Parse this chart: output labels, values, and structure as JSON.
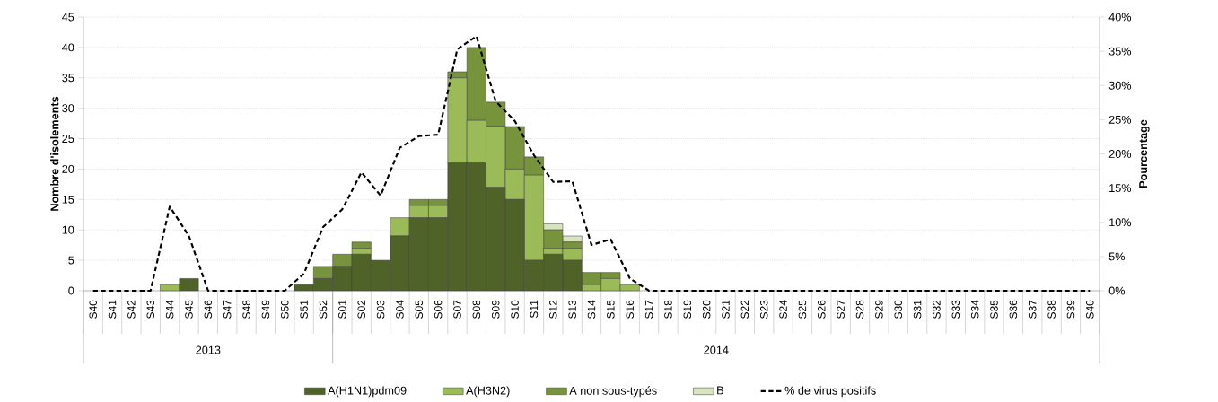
{
  "chart_data": {
    "type": "bar",
    "stacked": true,
    "categories": [
      "S40",
      "S41",
      "S42",
      "S43",
      "S44",
      "S45",
      "S46",
      "S47",
      "S48",
      "S49",
      "S50",
      "S51",
      "S52",
      "S01",
      "S02",
      "S03",
      "S04",
      "S05",
      "S06",
      "S07",
      "S08",
      "S09",
      "S10",
      "S11",
      "S12",
      "S13",
      "S14",
      "S15",
      "S16",
      "S17",
      "S18",
      "S19",
      "S20",
      "S21",
      "S22",
      "S23",
      "S24",
      "S25",
      "S26",
      "S27",
      "S28",
      "S29",
      "S30",
      "S31",
      "S32",
      "S33",
      "S34",
      "S35",
      "S36",
      "S37",
      "S38",
      "S39",
      "S40"
    ],
    "series": [
      {
        "name": "A(H1N1)pdm09",
        "color": "#4f6228",
        "values": [
          0,
          0,
          0,
          0,
          0,
          2,
          0,
          0,
          0,
          0,
          0,
          1,
          2,
          4,
          6,
          5,
          9,
          12,
          12,
          21,
          21,
          17,
          15,
          5,
          6,
          5,
          0,
          0,
          0,
          0,
          0,
          0,
          0,
          0,
          0,
          0,
          0,
          0,
          0,
          0,
          0,
          0,
          0,
          0,
          0,
          0,
          0,
          0,
          0,
          0,
          0,
          0,
          0
        ]
      },
      {
        "name": "A(H3N2)",
        "color": "#9bbb59",
        "values": [
          0,
          0,
          0,
          0,
          1,
          0,
          0,
          0,
          0,
          0,
          0,
          0,
          0,
          0,
          1,
          0,
          3,
          2,
          2,
          14,
          7,
          10,
          5,
          14,
          1,
          2,
          1,
          2,
          1,
          0,
          0,
          0,
          0,
          0,
          0,
          0,
          0,
          0,
          0,
          0,
          0,
          0,
          0,
          0,
          0,
          0,
          0,
          0,
          0,
          0,
          0,
          0,
          0
        ]
      },
      {
        "name": "A non sous-typés",
        "color": "#77933c",
        "values": [
          0,
          0,
          0,
          0,
          0,
          0,
          0,
          0,
          0,
          0,
          0,
          0,
          2,
          2,
          1,
          0,
          0,
          1,
          1,
          1,
          12,
          4,
          7,
          3,
          3,
          1,
          2,
          1,
          0,
          0,
          0,
          0,
          0,
          0,
          0,
          0,
          0,
          0,
          0,
          0,
          0,
          0,
          0,
          0,
          0,
          0,
          0,
          0,
          0,
          0,
          0,
          0,
          0
        ]
      },
      {
        "name": "B",
        "color": "#d7e4bd",
        "values": [
          0,
          0,
          0,
          0,
          0,
          0,
          0,
          0,
          0,
          0,
          0,
          0,
          0,
          0,
          0,
          0,
          0,
          0,
          0,
          0,
          0,
          0,
          0,
          0,
          1,
          1,
          0,
          0,
          0,
          0,
          0,
          0,
          0,
          0,
          0,
          0,
          0,
          0,
          0,
          0,
          0,
          0,
          0,
          0,
          0,
          0,
          0,
          0,
          0,
          0,
          0,
          0,
          0
        ]
      },
      {
        "name": "% de virus positifs",
        "type": "line",
        "axis": "y2",
        "color": "#000000",
        "line_style": "dashed",
        "marker": "none",
        "values": [
          0,
          0,
          0,
          0,
          12.3,
          8.0,
          0,
          0,
          0,
          0,
          0,
          2.5,
          9.3,
          11.9,
          17.3,
          13.9,
          20.9,
          22.6,
          22.8,
          35.3,
          37.2,
          27.7,
          24.8,
          19.8,
          15.9,
          16.0,
          6.7,
          7.5,
          1.8,
          0,
          0,
          0,
          0,
          0,
          0,
          0,
          0,
          0,
          0,
          0,
          0,
          0,
          0,
          0,
          0,
          0,
          0,
          0,
          0,
          0,
          0,
          0,
          0
        ]
      }
    ],
    "ylabel": "Nombre d'isolements",
    "y2label": "Pourcentage",
    "ylim": [
      0,
      45
    ],
    "yticks": [
      0,
      5,
      10,
      15,
      20,
      25,
      30,
      35,
      40,
      45
    ],
    "y2lim": [
      0,
      40
    ],
    "y2ticks": [
      {
        "value": 0,
        "label": "0%"
      },
      {
        "value": 5,
        "label": "5%"
      },
      {
        "value": 10,
        "label": "10%"
      },
      {
        "value": 15,
        "label": "15%"
      },
      {
        "value": 20,
        "label": "20%"
      },
      {
        "value": 25,
        "label": "25%"
      },
      {
        "value": 30,
        "label": "30%"
      },
      {
        "value": 35,
        "label": "35%"
      },
      {
        "value": 40,
        "label": "40%"
      }
    ],
    "grid": "y",
    "legend": "bottom",
    "annotations": [
      "2013",
      "2014"
    ]
  }
}
